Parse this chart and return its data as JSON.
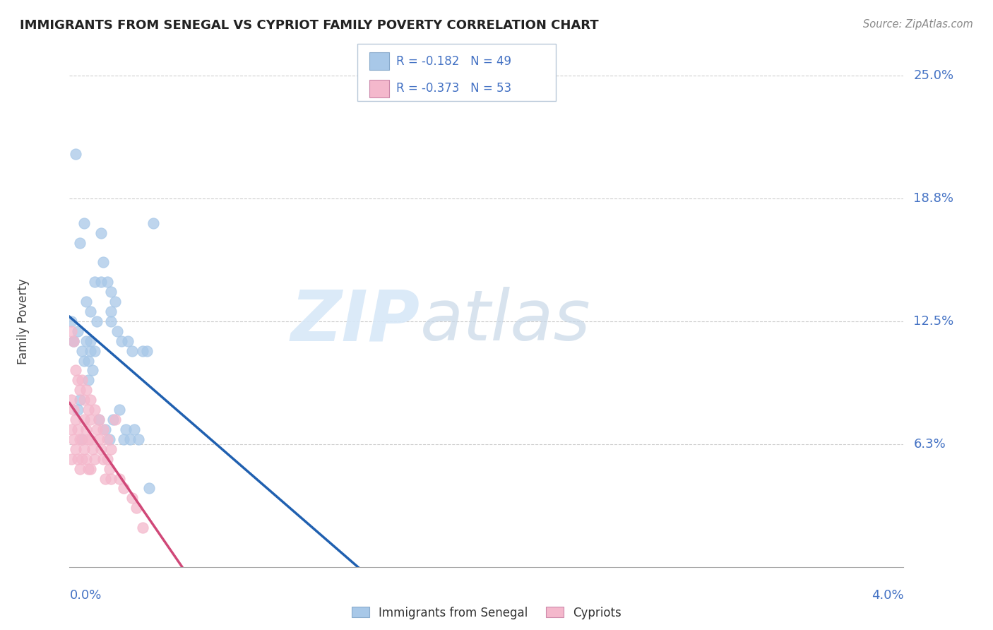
{
  "title": "IMMIGRANTS FROM SENEGAL VS CYPRIOT FAMILY POVERTY CORRELATION CHART",
  "source": "Source: ZipAtlas.com",
  "ylabel": "Family Poverty",
  "xmin": 0.0,
  "xmax": 0.04,
  "ymin": 0.0,
  "ymax": 0.25,
  "blue_R": -0.182,
  "blue_N": 49,
  "pink_R": -0.373,
  "pink_N": 53,
  "blue_color": "#a8c8e8",
  "pink_color": "#f4b8cc",
  "blue_line_color": "#2060b0",
  "pink_line_color": "#d04878",
  "watermark_color": "#ddeeff",
  "axis_label_color": "#4472c4",
  "grid_color": "#cccccc",
  "title_color": "#222222",
  "source_color": "#888888",
  "legend_label_blue": "Immigrants from Senegal",
  "legend_label_pink": "Cypriots",
  "ytick_vals": [
    0.0625,
    0.125,
    0.1875,
    0.25
  ],
  "ytick_labels": [
    "6.3%",
    "12.5%",
    "18.8%",
    "25.0%"
  ],
  "blue_x": [
    0.0003,
    0.0005,
    0.0007,
    0.0008,
    0.001,
    0.001,
    0.001,
    0.0012,
    0.0013,
    0.0015,
    0.0015,
    0.0016,
    0.0018,
    0.002,
    0.002,
    0.002,
    0.0022,
    0.0023,
    0.0025,
    0.0028,
    0.003,
    0.0035,
    0.004,
    0.0001,
    0.0002,
    0.0004,
    0.0005,
    0.0006,
    0.0007,
    0.0008,
    0.0009,
    0.0011,
    0.0012,
    0.0014,
    0.0017,
    0.0019,
    0.0021,
    0.0024,
    0.0026,
    0.0027,
    0.0029,
    0.0031,
    0.0033,
    0.0002,
    0.0004,
    0.0006,
    0.0009,
    0.0038,
    0.0037
  ],
  "blue_y": [
    0.21,
    0.165,
    0.175,
    0.135,
    0.13,
    0.115,
    0.11,
    0.145,
    0.125,
    0.17,
    0.145,
    0.155,
    0.145,
    0.13,
    0.125,
    0.14,
    0.135,
    0.12,
    0.115,
    0.115,
    0.11,
    0.11,
    0.175,
    0.125,
    0.115,
    0.12,
    0.085,
    0.11,
    0.105,
    0.115,
    0.095,
    0.1,
    0.11,
    0.075,
    0.07,
    0.065,
    0.075,
    0.08,
    0.065,
    0.07,
    0.065,
    0.07,
    0.065,
    0.115,
    0.08,
    0.065,
    0.105,
    0.04,
    0.11
  ],
  "pink_x": [
    0.0001,
    0.0001,
    0.0001,
    0.0002,
    0.0002,
    0.0003,
    0.0003,
    0.0004,
    0.0004,
    0.0005,
    0.0005,
    0.0006,
    0.0006,
    0.0007,
    0.0007,
    0.0008,
    0.0008,
    0.0009,
    0.0009,
    0.001,
    0.001,
    0.001,
    0.0011,
    0.0012,
    0.0013,
    0.0014,
    0.0015,
    0.0016,
    0.0017,
    0.0018,
    0.0019,
    0.002,
    0.0022,
    0.0024,
    0.0026,
    0.003,
    0.0032,
    0.0001,
    0.0002,
    0.0003,
    0.0004,
    0.0005,
    0.0006,
    0.0007,
    0.0008,
    0.0009,
    0.001,
    0.0012,
    0.0014,
    0.0016,
    0.0018,
    0.002,
    0.0035
  ],
  "pink_y": [
    0.085,
    0.07,
    0.055,
    0.08,
    0.065,
    0.075,
    0.06,
    0.07,
    0.055,
    0.065,
    0.05,
    0.065,
    0.055,
    0.075,
    0.06,
    0.07,
    0.055,
    0.065,
    0.05,
    0.075,
    0.065,
    0.05,
    0.06,
    0.055,
    0.07,
    0.065,
    0.06,
    0.055,
    0.045,
    0.055,
    0.05,
    0.045,
    0.075,
    0.045,
    0.04,
    0.035,
    0.03,
    0.12,
    0.115,
    0.1,
    0.095,
    0.09,
    0.095,
    0.085,
    0.09,
    0.08,
    0.085,
    0.08,
    0.075,
    0.07,
    0.065,
    0.06,
    0.02
  ]
}
